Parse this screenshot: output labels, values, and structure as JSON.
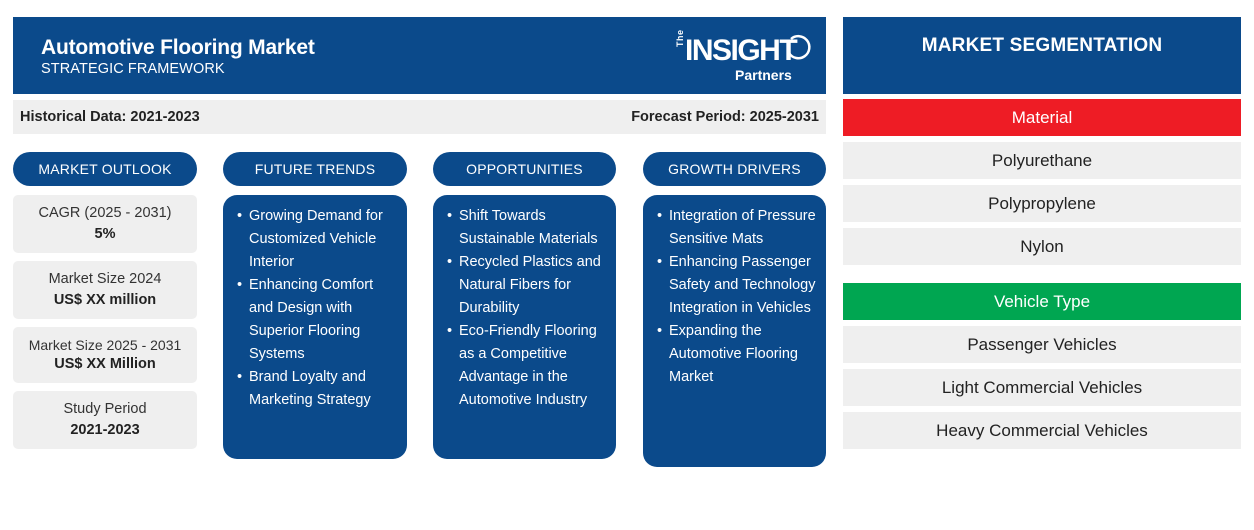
{
  "header": {
    "title": "Automotive Flooring Market",
    "subtitle": "STRATEGIC FRAMEWORK",
    "logo": {
      "the": "The",
      "name": "INSIGHT",
      "tagline": "Partners"
    }
  },
  "periods": {
    "historical": "Historical Data: 2021-2023",
    "forecast": "Forecast Period: 2025-2031"
  },
  "sections": {
    "outlook": "MARKET OUTLOOK",
    "trends": "FUTURE TRENDS",
    "opportunities": "OPPORTUNITIES",
    "drivers": "GROWTH DRIVERS"
  },
  "outlook": [
    {
      "label": "CAGR (2025 - 2031)",
      "value": "5%"
    },
    {
      "label": "Market Size 2024",
      "value": "US$ XX million"
    },
    {
      "label": "Market Size 2025 - 2031",
      "value": "US$ XX Million"
    },
    {
      "label": "Study Period",
      "value": "2021-2023"
    }
  ],
  "trends": [
    "Growing Demand for Customized Vehicle Interior",
    "Enhancing Comfort and Design with Superior Flooring Systems",
    "Brand Loyalty and Marketing Strategy"
  ],
  "opportunities": [
    "Shift Towards Sustainable Materials",
    "Recycled Plastics and Natural Fibers for Durability",
    "Eco-Friendly Flooring as a Competitive Advantage in the Automotive Industry"
  ],
  "drivers": [
    "Integration of Pressure Sensitive Mats",
    "Enhancing Passenger Safety and Technology Integration in Vehicles",
    "Expanding the Automotive Flooring Market"
  ],
  "segmentation": {
    "title": "MARKET SEGMENTATION",
    "material": {
      "name": "Material",
      "color": "#ee1c25",
      "items": [
        "Polyurethane",
        "Polypropylene",
        "Nylon"
      ]
    },
    "vehicle": {
      "name": "Vehicle Type",
      "color": "#00a651",
      "items": [
        "Passenger Vehicles",
        "Light Commercial Vehicles",
        "Heavy Commercial Vehicles"
      ]
    }
  },
  "colors": {
    "primary": "#0b4a8b",
    "panel": "#efefef"
  }
}
